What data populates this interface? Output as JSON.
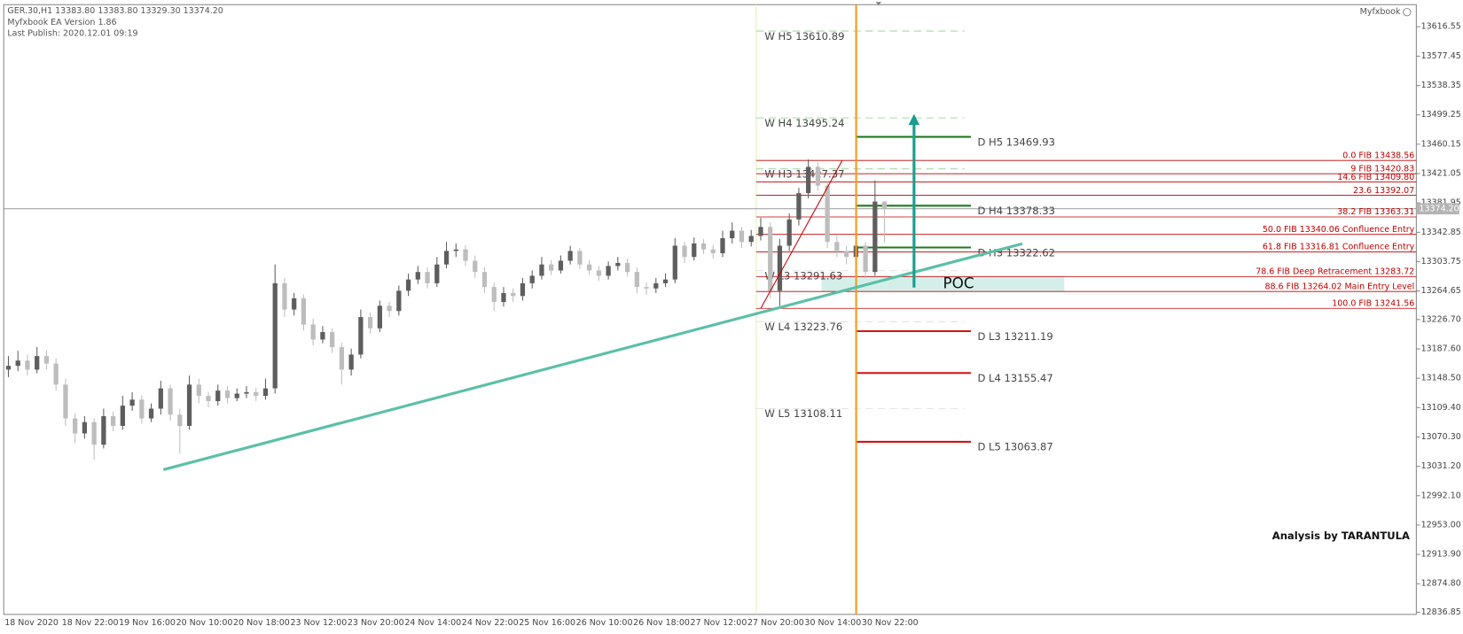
{
  "chart_data": {
    "type": "candlestick",
    "header": {
      "symbol_line": "GER.30,H1  13383.80 13383.80 13329.30 13374.20",
      "version": "Myfxbook EA Version 1.86",
      "publish": "Last Publish: 2020.12.01 09:19",
      "brand": "Myfxbook"
    },
    "signature": "Analysis by TARANTULA",
    "poc_label": "POC",
    "up_color": "#5e5e5e",
    "down_color": "#bdbdbd",
    "ylim": [
      12834,
      13646
    ],
    "yticks": [
      13616.55,
      13577.45,
      13538.35,
      13499.25,
      13460.15,
      13421.05,
      13381.95,
      13342.85,
      13303.75,
      13264.65,
      {
        "value": 13226.7,
        "label": "13226.70"
      },
      {
        "value": 13187.6,
        "label": "13187.60"
      },
      {
        "value": 13148.5,
        "label": "13148.50"
      },
      {
        "value": 13109.4,
        "label": "13109.40"
      },
      {
        "value": 13070.3,
        "label": "13070.30"
      },
      {
        "value": 13031.2,
        "label": "13031.20"
      },
      {
        "value": 12992.1,
        "label": "12992.10"
      },
      {
        "value": 12953,
        "label": "12953.00"
      },
      {
        "value": 12913.9,
        "label": "12913.90"
      },
      {
        "value": 12874.8,
        "label": "12874.80"
      },
      12836.85
    ],
    "last_price": {
      "value": 13374.2,
      "label": "13374.20"
    },
    "x_labels": [
      "18 Nov 2020",
      "18 Nov 22:00",
      "19 Nov 16:00",
      "20 Nov 10:00",
      "20 Nov 18:00",
      "23 Nov 12:00",
      "23 Nov 20:00",
      "24 Nov 14:00",
      "24 Nov 22:00",
      "25 Nov 16:00",
      "26 Nov 10:00",
      "26 Nov 18:00",
      "27 Nov 12:00",
      "27 Nov 20:00",
      "30 Nov 14:00",
      "30 Nov 22:00"
    ],
    "ohlc": [
      [
        13160,
        13178,
        13150,
        13165
      ],
      [
        13165,
        13185,
        13158,
        13172
      ],
      [
        13172,
        13180,
        13152,
        13160
      ],
      [
        13160,
        13190,
        13155,
        13178
      ],
      [
        13178,
        13186,
        13160,
        13168
      ],
      [
        13168,
        13175,
        13132,
        13140
      ],
      [
        13140,
        13148,
        13085,
        13095
      ],
      [
        13095,
        13102,
        13062,
        13075
      ],
      [
        13075,
        13098,
        13068,
        13090
      ],
      [
        13090,
        13095,
        13040,
        13060
      ],
      [
        13060,
        13108,
        13055,
        13098
      ],
      [
        13098,
        13104,
        13078,
        13085
      ],
      [
        13085,
        13125,
        13080,
        13112
      ],
      [
        13112,
        13130,
        13105,
        13120
      ],
      [
        13120,
        13126,
        13088,
        13095
      ],
      [
        13095,
        13115,
        13090,
        13108
      ],
      [
        13108,
        13145,
        13100,
        13135
      ],
      [
        13135,
        13140,
        13092,
        13100
      ],
      [
        13100,
        13108,
        13048,
        13085
      ],
      [
        13085,
        13152,
        13080,
        13140
      ],
      [
        13140,
        13148,
        13115,
        13125
      ],
      [
        13125,
        13130,
        13110,
        13118
      ],
      [
        13118,
        13140,
        13112,
        13132
      ],
      [
        13132,
        13138,
        13115,
        13122
      ],
      [
        13122,
        13135,
        13118,
        13128
      ],
      [
        13128,
        13138,
        13122,
        13130
      ],
      [
        13130,
        13136,
        13118,
        13125
      ],
      [
        13125,
        13148,
        13120,
        13135
      ],
      [
        13135,
        13300,
        13128,
        13275
      ],
      [
        13275,
        13282,
        13230,
        13240
      ],
      [
        13240,
        13262,
        13232,
        13255
      ],
      [
        13255,
        13260,
        13212,
        13220
      ],
      [
        13220,
        13228,
        13192,
        13200
      ],
      [
        13200,
        13218,
        13195,
        13210
      ],
      [
        13210,
        13215,
        13182,
        13190
      ],
      [
        13190,
        13196,
        13140,
        13160
      ],
      [
        13160,
        13188,
        13152,
        13180
      ],
      [
        13180,
        13240,
        13175,
        13230
      ],
      [
        13230,
        13236,
        13208,
        13215
      ],
      [
        13215,
        13252,
        13210,
        13245
      ],
      [
        13245,
        13250,
        13230,
        13238
      ],
      [
        13238,
        13272,
        13232,
        13265
      ],
      [
        13265,
        13288,
        13258,
        13280
      ],
      [
        13280,
        13298,
        13274,
        13290
      ],
      [
        13290,
        13296,
        13268,
        13275
      ],
      [
        13275,
        13310,
        13270,
        13300
      ],
      [
        13300,
        13330,
        13295,
        13318
      ],
      [
        13318,
        13328,
        13310,
        13320
      ],
      [
        13320,
        13326,
        13298,
        13305
      ],
      [
        13305,
        13312,
        13282,
        13290
      ],
      [
        13290,
        13296,
        13262,
        13270
      ],
      [
        13270,
        13276,
        13238,
        13250
      ],
      [
        13250,
        13270,
        13244,
        13262
      ],
      [
        13262,
        13268,
        13250,
        13258
      ],
      [
        13258,
        13282,
        13252,
        13275
      ],
      [
        13275,
        13292,
        13268,
        13285
      ],
      [
        13285,
        13310,
        13280,
        13300
      ],
      [
        13300,
        13306,
        13286,
        13292
      ],
      [
        13292,
        13312,
        13288,
        13305
      ],
      [
        13305,
        13325,
        13300,
        13318
      ],
      [
        13318,
        13322,
        13294,
        13300
      ],
      [
        13300,
        13306,
        13286,
        13292
      ],
      [
        13292,
        13298,
        13278,
        13285
      ],
      [
        13285,
        13304,
        13280,
        13298
      ],
      [
        13298,
        13310,
        13292,
        13302
      ],
      [
        13302,
        13308,
        13284,
        13290
      ],
      [
        13290,
        13296,
        13262,
        13270
      ],
      [
        13270,
        13276,
        13260,
        13268
      ],
      [
        13268,
        13282,
        13262,
        13275
      ],
      [
        13275,
        13288,
        13270,
        13280
      ],
      [
        13280,
        13335,
        13275,
        13325
      ],
      [
        13325,
        13330,
        13302,
        13310
      ],
      [
        13310,
        13336,
        13305,
        13328
      ],
      [
        13328,
        13334,
        13314,
        13320
      ],
      [
        13320,
        13326,
        13308,
        13315
      ],
      [
        13315,
        13345,
        13310,
        13335
      ],
      [
        13335,
        13356,
        13328,
        13345
      ],
      [
        13345,
        13350,
        13322,
        13330
      ],
      [
        13330,
        13346,
        13324,
        13338
      ],
      [
        13338,
        13362,
        13332,
        13350
      ],
      [
        13350,
        13356,
        13255,
        13265
      ],
      [
        13265,
        13334,
        13245,
        13325
      ],
      [
        13325,
        13368,
        13318,
        13360
      ],
      [
        13360,
        13402,
        13352,
        13395
      ],
      [
        13395,
        13440,
        13388,
        13430
      ],
      [
        13430,
        13436,
        13398,
        13405
      ],
      [
        13405,
        13412,
        13322,
        13330
      ],
      [
        13330,
        13338,
        13310,
        13318
      ],
      [
        13318,
        13325,
        13300,
        13310
      ],
      [
        13310,
        13332,
        13304,
        13325
      ],
      [
        13325,
        13330,
        13282,
        13290
      ],
      [
        13290,
        13412,
        13285,
        13383.8
      ],
      [
        13383.8,
        13383.8,
        13329.3,
        13374.2
      ]
    ],
    "weekly_levels": [
      {
        "label": "W  H5 13610.89",
        "value": 13610.89
      },
      {
        "label": "W  H4 13495.24",
        "value": 13495.24
      },
      {
        "label": "W  H3 13427.37",
        "value": 13427.37
      },
      {
        "label": "W  L3 13291.63",
        "value": 13291.63
      },
      {
        "label": "W  L4 13223.76",
        "value": 13223.76
      },
      {
        "label": "W  L5 13108.11",
        "value": 13108.11
      }
    ],
    "daily_levels": [
      {
        "label": "D  H5 13469.93",
        "value": 13469.93
      },
      {
        "label": "D  H4 13378.33",
        "value": 13378.33
      },
      {
        "label": "D  H3 13322.62",
        "value": 13322.62
      },
      {
        "label": "D  L3 13211.19",
        "value": 13211.19
      },
      {
        "label": "D  L4 13155.47",
        "value": 13155.47
      },
      {
        "label": "D  L5 13063.87",
        "value": 13063.87
      }
    ],
    "fib_levels": [
      {
        "label": "0.0 FIB 13438.56",
        "value": 13438.56
      },
      {
        "label": "9 FIB 13420.83",
        "value": 13420.83
      },
      {
        "label": "14.6 FIB 13409.80",
        "value": 13409.8
      },
      {
        "label": "23.6  13392.07",
        "value": 13392.07
      },
      {
        "label": "38.2 FIB 13363.31",
        "value": 13363.31
      },
      {
        "label": "50.0 FIB 13340.06 Confluence Entry",
        "value": 13340.06
      },
      {
        "label": "61.8 FIB 13316.81 Confluence Entry",
        "value": 13316.81
      },
      {
        "label": "78.6 FIB Deep Retracement 13283.72",
        "value": 13283.72
      },
      {
        "label": "88.6 FIB 13264.02 Main Entry Level",
        "value": 13264.02
      },
      {
        "label": "100.0 FIB 13241.56",
        "value": 13241.56
      }
    ]
  }
}
